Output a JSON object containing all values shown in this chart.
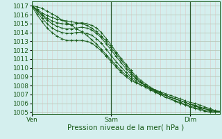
{
  "background_color": "#d4efee",
  "grid_color_major": "#b8c8b8",
  "grid_color_minor": "#ddc8c8",
  "line_color": "#1a5c1a",
  "ylim": [
    1004.8,
    1017.5
  ],
  "yticks": [
    1005,
    1006,
    1007,
    1008,
    1009,
    1010,
    1011,
    1012,
    1013,
    1014,
    1015,
    1016,
    1017
  ],
  "xlabel": "Pression niveau de la mer( hPa )",
  "xtick_labels": [
    "Ven",
    "Sam",
    "Dim"
  ],
  "xtick_positions": [
    0,
    48,
    96
  ],
  "total_hours": 114,
  "curves": [
    [
      1017.0,
      1016.9,
      1016.7,
      1016.4,
      1016.1,
      1015.8,
      1015.4,
      1015.1,
      1014.8,
      1014.4,
      1014.1,
      1013.7,
      1013.2,
      1012.7,
      1012.1,
      1011.5,
      1010.9,
      1010.3,
      1009.7,
      1009.2,
      1008.8,
      1008.4,
      1008.1,
      1007.8,
      1007.5,
      1007.2,
      1007.0,
      1006.7,
      1006.5,
      1006.2,
      1006.0,
      1005.8,
      1005.6,
      1005.4,
      1005.3,
      1005.1,
      1005.0,
      1005.0,
      1005.1
    ],
    [
      1017.0,
      1016.6,
      1016.2,
      1015.9,
      1015.7,
      1015.5,
      1015.4,
      1015.3,
      1015.2,
      1015.1,
      1015.0,
      1014.8,
      1014.5,
      1014.1,
      1013.6,
      1013.0,
      1012.3,
      1011.6,
      1010.9,
      1010.2,
      1009.5,
      1008.9,
      1008.4,
      1008.0,
      1007.6,
      1007.3,
      1007.0,
      1006.7,
      1006.5,
      1006.3,
      1006.1,
      1005.9,
      1005.7,
      1005.5,
      1005.4,
      1005.2,
      1005.1,
      1005.0,
      1005.0
    ],
    [
      1017.0,
      1016.5,
      1016.0,
      1015.6,
      1015.3,
      1015.1,
      1015.0,
      1014.9,
      1014.9,
      1015.0,
      1015.1,
      1015.0,
      1014.8,
      1014.5,
      1014.0,
      1013.3,
      1012.6,
      1011.8,
      1011.1,
      1010.4,
      1009.7,
      1009.1,
      1008.6,
      1008.2,
      1007.8,
      1007.5,
      1007.2,
      1006.9,
      1006.7,
      1006.5,
      1006.3,
      1006.1,
      1005.9,
      1005.7,
      1005.5,
      1005.4,
      1005.2,
      1005.1,
      1005.0
    ],
    [
      1017.0,
      1016.5,
      1015.9,
      1015.4,
      1015.0,
      1014.7,
      1014.5,
      1014.4,
      1014.4,
      1014.5,
      1014.6,
      1014.5,
      1014.3,
      1013.9,
      1013.4,
      1012.7,
      1012.0,
      1011.3,
      1010.6,
      1009.9,
      1009.3,
      1008.8,
      1008.4,
      1008.0,
      1007.7,
      1007.4,
      1007.1,
      1006.9,
      1006.7,
      1006.5,
      1006.3,
      1006.1,
      1005.9,
      1005.7,
      1005.5,
      1005.4,
      1005.2,
      1005.1,
      1005.0
    ],
    [
      1017.0,
      1016.3,
      1015.6,
      1015.0,
      1014.5,
      1014.2,
      1014.0,
      1013.9,
      1013.9,
      1014.0,
      1014.0,
      1013.9,
      1013.7,
      1013.3,
      1012.8,
      1012.1,
      1011.4,
      1010.7,
      1010.1,
      1009.5,
      1009.0,
      1008.6,
      1008.3,
      1008.0,
      1007.7,
      1007.4,
      1007.2,
      1006.9,
      1006.7,
      1006.5,
      1006.3,
      1006.1,
      1005.9,
      1005.8,
      1005.6,
      1005.4,
      1005.3,
      1005.1,
      1005.0
    ],
    [
      1016.9,
      1016.0,
      1015.2,
      1014.5,
      1014.0,
      1013.6,
      1013.3,
      1013.1,
      1013.1,
      1013.1,
      1013.1,
      1013.0,
      1012.8,
      1012.4,
      1011.9,
      1011.3,
      1010.7,
      1010.1,
      1009.5,
      1009.0,
      1008.6,
      1008.3,
      1008.1,
      1007.9,
      1007.7,
      1007.5,
      1007.3,
      1007.1,
      1006.9,
      1006.7,
      1006.5,
      1006.3,
      1006.1,
      1006.0,
      1005.8,
      1005.6,
      1005.4,
      1005.2,
      1005.1
    ]
  ],
  "vline_positions": [
    0,
    48,
    96
  ],
  "vline_color": "#2d5a2d",
  "fontsize_label": 7.5,
  "fontsize_tick": 6.5,
  "marker": "+"
}
